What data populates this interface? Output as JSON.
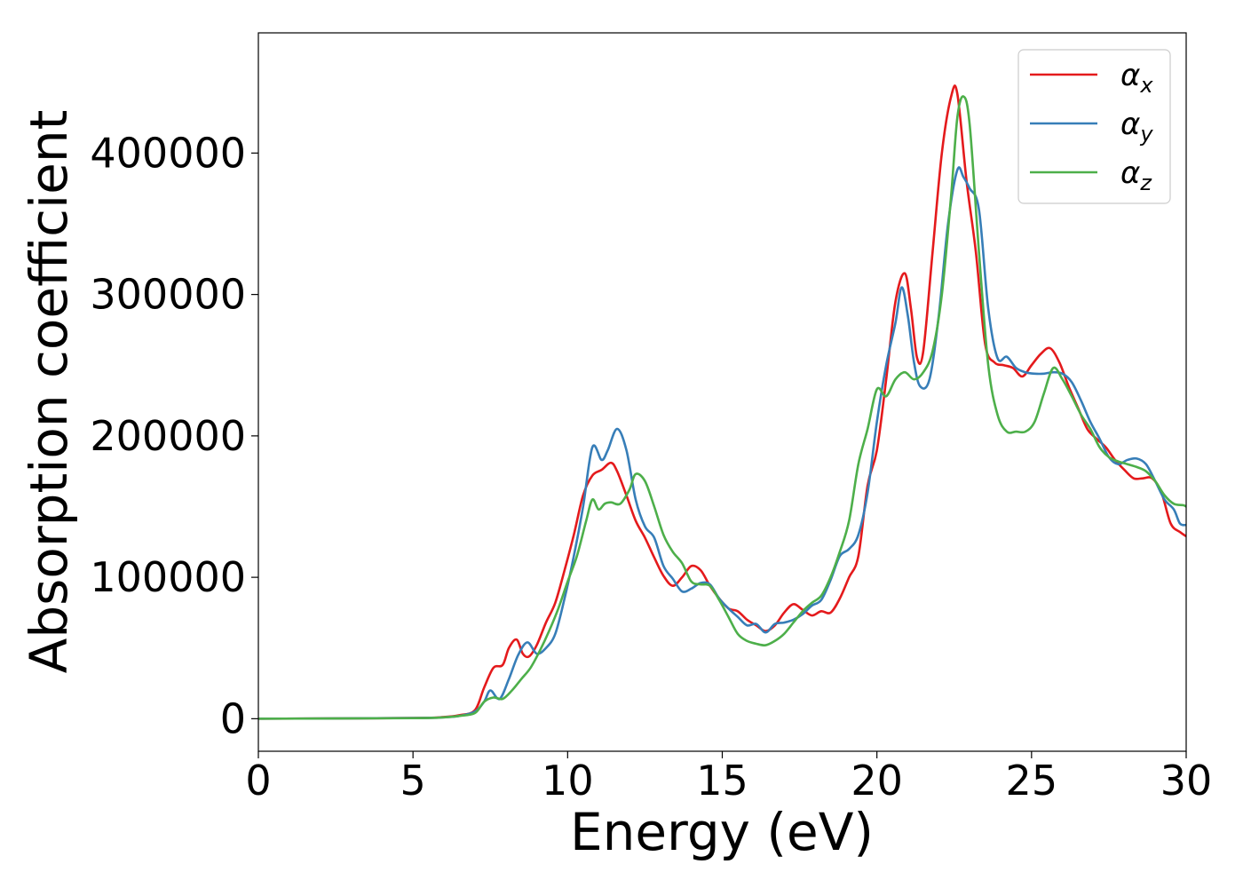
{
  "chart_data": {
    "type": "line",
    "xlabel": "Energy (eV)",
    "ylabel": "Absorption coefficient",
    "xlim": [
      0,
      30
    ],
    "ylim": [
      -23000,
      485000
    ],
    "xticks": [
      0,
      5,
      10,
      15,
      20,
      25,
      30
    ],
    "xtick_labels": [
      "0",
      "5",
      "10",
      "15",
      "20",
      "25",
      "30"
    ],
    "yticks": [
      0,
      100000,
      200000,
      300000,
      400000
    ],
    "ytick_labels": [
      "0",
      "100000",
      "200000",
      "300000",
      "400000"
    ],
    "grid": false,
    "legend_position": "top-right",
    "series": [
      {
        "name": "α",
        "subscript": "x",
        "color": "#e41a1c",
        "x": [
          0,
          5,
          6,
          6.5,
          7.0,
          7.3,
          7.6,
          7.9,
          8.1,
          8.35,
          8.55,
          8.75,
          9.0,
          9.3,
          9.6,
          9.9,
          10.2,
          10.5,
          10.8,
          11.1,
          11.4,
          11.6,
          11.9,
          12.2,
          12.5,
          12.8,
          13.1,
          13.4,
          13.7,
          14.0,
          14.3,
          14.6,
          14.9,
          15.2,
          15.5,
          15.8,
          16.1,
          16.4,
          16.7,
          17.0,
          17.3,
          17.6,
          17.9,
          18.2,
          18.5,
          18.8,
          19.1,
          19.4,
          19.7,
          20.0,
          20.3,
          20.6,
          20.9,
          21.1,
          21.3,
          21.5,
          21.8,
          22.1,
          22.4,
          22.6,
          22.9,
          23.2,
          23.5,
          23.8,
          24.1,
          24.4,
          24.7,
          25.0,
          25.3,
          25.6,
          25.9,
          26.2,
          26.5,
          26.8,
          27.1,
          27.4,
          27.7,
          28.0,
          28.3,
          28.6,
          28.9,
          29.2,
          29.5,
          29.8,
          30.0
        ],
        "y": [
          0,
          500,
          1200,
          2500,
          6000,
          22000,
          36000,
          38000,
          50000,
          56000,
          46000,
          44000,
          52000,
          68000,
          82000,
          105000,
          130000,
          158000,
          172000,
          176000,
          181000,
          175000,
          158000,
          140000,
          128000,
          114000,
          101000,
          94000,
          100000,
          108000,
          105000,
          94000,
          85000,
          78000,
          76000,
          70000,
          66000,
          62000,
          66000,
          75000,
          81000,
          77000,
          73000,
          76000,
          75000,
          85000,
          100000,
          115000,
          165000,
          190000,
          240000,
          295000,
          315000,
          290000,
          255000,
          260000,
          330000,
          400000,
          440000,
          442000,
          380000,
          330000,
          265000,
          252000,
          250000,
          248000,
          242000,
          250000,
          258000,
          262000,
          252000,
          235000,
          220000,
          205000,
          198000,
          192000,
          183000,
          176000,
          170000,
          170000,
          170000,
          160000,
          138000,
          132000,
          129000
        ]
      },
      {
        "name": "α",
        "subscript": "y",
        "color": "#377eb8",
        "x": [
          0,
          5,
          6,
          6.5,
          7.0,
          7.3,
          7.5,
          7.8,
          8.1,
          8.4,
          8.7,
          9.0,
          9.3,
          9.6,
          9.9,
          10.2,
          10.5,
          10.8,
          11.1,
          11.3,
          11.6,
          11.9,
          12.2,
          12.5,
          12.8,
          13.1,
          13.4,
          13.7,
          14.0,
          14.3,
          14.6,
          14.9,
          15.2,
          15.5,
          15.8,
          16.1,
          16.4,
          16.7,
          17.0,
          17.3,
          17.6,
          17.9,
          18.2,
          18.5,
          18.8,
          19.1,
          19.4,
          19.7,
          20.0,
          20.3,
          20.6,
          20.8,
          21.0,
          21.2,
          21.4,
          21.7,
          22.0,
          22.3,
          22.6,
          22.8,
          23.0,
          23.3,
          23.6,
          23.9,
          24.2,
          24.5,
          24.8,
          25.1,
          25.4,
          25.7,
          26.0,
          26.3,
          26.6,
          26.9,
          27.2,
          27.5,
          27.8,
          28.1,
          28.4,
          28.7,
          29.0,
          29.3,
          29.6,
          29.8,
          30.0
        ],
        "y": [
          0,
          500,
          1000,
          2000,
          5000,
          12000,
          20000,
          14000,
          28000,
          45000,
          54000,
          46000,
          50000,
          60000,
          85000,
          115000,
          150000,
          192000,
          183000,
          190000,
          205000,
          190000,
          155000,
          136000,
          128000,
          108000,
          99000,
          90000,
          92000,
          96000,
          95000,
          85000,
          78000,
          72000,
          66000,
          67000,
          61000,
          67000,
          68000,
          70000,
          74000,
          80000,
          84000,
          98000,
          115000,
          120000,
          130000,
          160000,
          210000,
          250000,
          280000,
          305000,
          285000,
          252000,
          235000,
          240000,
          285000,
          350000,
          388000,
          383000,
          375000,
          360000,
          290000,
          255000,
          256000,
          248000,
          245000,
          244000,
          244000,
          245000,
          244000,
          238000,
          225000,
          210000,
          198000,
          185000,
          180000,
          183000,
          184000,
          180000,
          168000,
          155000,
          148000,
          138000,
          137000
        ]
      },
      {
        "name": "α",
        "subscript": "z",
        "color": "#4daf4a",
        "x": [
          0,
          5,
          6,
          6.5,
          7.0,
          7.3,
          7.6,
          7.9,
          8.2,
          8.5,
          8.8,
          9.1,
          9.4,
          9.7,
          10.0,
          10.3,
          10.6,
          10.8,
          11.0,
          11.2,
          11.4,
          11.7,
          12.0,
          12.2,
          12.5,
          12.8,
          13.1,
          13.4,
          13.7,
          14.0,
          14.3,
          14.6,
          14.9,
          15.2,
          15.5,
          15.8,
          16.1,
          16.4,
          16.7,
          17.0,
          17.3,
          17.6,
          17.9,
          18.2,
          18.5,
          18.8,
          19.1,
          19.4,
          19.7,
          20.0,
          20.3,
          20.6,
          20.9,
          21.2,
          21.5,
          21.8,
          22.1,
          22.4,
          22.6,
          22.8,
          23.0,
          23.3,
          23.6,
          23.9,
          24.2,
          24.5,
          24.8,
          25.1,
          25.4,
          25.7,
          26.0,
          26.3,
          26.6,
          26.9,
          27.2,
          27.5,
          27.8,
          28.1,
          28.4,
          28.7,
          29.0,
          29.3,
          29.6,
          29.9,
          30.0
        ],
        "y": [
          0,
          400,
          1000,
          2000,
          4000,
          12000,
          15000,
          14000,
          20000,
          28000,
          36000,
          48000,
          62000,
          78000,
          97000,
          115000,
          140000,
          155000,
          148000,
          152000,
          153000,
          152000,
          162000,
          173000,
          168000,
          150000,
          130000,
          118000,
          110000,
          97000,
          95000,
          94000,
          84000,
          72000,
          60000,
          55000,
          53000,
          52000,
          55000,
          60000,
          68000,
          76000,
          82000,
          87000,
          100000,
          118000,
          140000,
          180000,
          205000,
          233000,
          228000,
          240000,
          245000,
          240000,
          245000,
          260000,
          300000,
          370000,
          425000,
          440000,
          420000,
          330000,
          250000,
          215000,
          203000,
          203000,
          203000,
          210000,
          230000,
          248000,
          240000,
          228000,
          215000,
          205000,
          192000,
          185000,
          182000,
          180000,
          178000,
          175000,
          168000,
          158000,
          152000,
          151000,
          150000
        ]
      }
    ]
  }
}
